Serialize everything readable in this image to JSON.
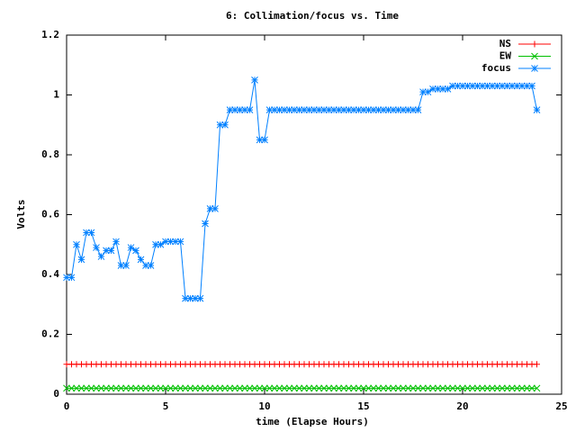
{
  "chart_data": {
    "type": "line",
    "title": "6: Collimation/focus vs. Time",
    "x_label": "time (Elapse Hours)",
    "y_label": "Volts",
    "xlim": [
      0,
      25
    ],
    "xticks": [
      0,
      5,
      10,
      15,
      20,
      25
    ],
    "ylim": [
      0,
      1.2
    ],
    "yticks": [
      0,
      0.2,
      0.4,
      0.6,
      0.8,
      1,
      1.2
    ],
    "legend": "top-right",
    "x": [
      0,
      0.25,
      0.5,
      0.75,
      1,
      1.25,
      1.5,
      1.75,
      2,
      2.25,
      2.5,
      2.75,
      3,
      3.25,
      3.5,
      3.75,
      4,
      4.25,
      4.5,
      4.75,
      5,
      5.25,
      5.5,
      5.75,
      6,
      6.25,
      6.5,
      6.75,
      7,
      7.25,
      7.5,
      7.75,
      8,
      8.25,
      8.5,
      8.75,
      9,
      9.25,
      9.5,
      9.75,
      10,
      10.25,
      10.5,
      10.75,
      11,
      11.25,
      11.5,
      11.75,
      12,
      12.25,
      12.5,
      12.75,
      13,
      13.25,
      13.5,
      13.75,
      14,
      14.25,
      14.5,
      14.75,
      15,
      15.25,
      15.5,
      15.75,
      16,
      16.25,
      16.5,
      16.75,
      17,
      17.25,
      17.5,
      17.75,
      18,
      18.25,
      18.5,
      18.75,
      19,
      19.25,
      19.5,
      19.75,
      20,
      20.25,
      20.5,
      20.75,
      21,
      21.25,
      21.5,
      21.75,
      22,
      22.25,
      22.5,
      22.75,
      23,
      23.25,
      23.5,
      23.75
    ],
    "series": [
      {
        "name": "NS",
        "color": "#ff0000",
        "marker": "plus",
        "values": [
          0.1,
          0.1,
          0.1,
          0.1,
          0.1,
          0.1,
          0.1,
          0.1,
          0.1,
          0.1,
          0.1,
          0.1,
          0.1,
          0.1,
          0.1,
          0.1,
          0.1,
          0.1,
          0.1,
          0.1,
          0.1,
          0.1,
          0.1,
          0.1,
          0.1,
          0.1,
          0.1,
          0.1,
          0.1,
          0.1,
          0.1,
          0.1,
          0.1,
          0.1,
          0.1,
          0.1,
          0.1,
          0.1,
          0.1,
          0.1,
          0.1,
          0.1,
          0.1,
          0.1,
          0.1,
          0.1,
          0.1,
          0.1,
          0.1,
          0.1,
          0.1,
          0.1,
          0.1,
          0.1,
          0.1,
          0.1,
          0.1,
          0.1,
          0.1,
          0.1,
          0.1,
          0.1,
          0.1,
          0.1,
          0.1,
          0.1,
          0.1,
          0.1,
          0.1,
          0.1,
          0.1,
          0.1,
          0.1,
          0.1,
          0.1,
          0.1,
          0.1,
          0.1,
          0.1,
          0.1,
          0.1,
          0.1,
          0.1,
          0.1,
          0.1,
          0.1,
          0.1,
          0.1,
          0.1,
          0.1,
          0.1,
          0.1,
          0.1,
          0.1,
          0.1,
          0.1
        ]
      },
      {
        "name": "EW",
        "color": "#00c000",
        "marker": "cross",
        "values": [
          0.02,
          0.02,
          0.02,
          0.02,
          0.02,
          0.02,
          0.02,
          0.02,
          0.02,
          0.02,
          0.02,
          0.02,
          0.02,
          0.02,
          0.02,
          0.02,
          0.02,
          0.02,
          0.02,
          0.02,
          0.02,
          0.02,
          0.02,
          0.02,
          0.02,
          0.02,
          0.02,
          0.02,
          0.02,
          0.02,
          0.02,
          0.02,
          0.02,
          0.02,
          0.02,
          0.02,
          0.02,
          0.02,
          0.02,
          0.02,
          0.02,
          0.02,
          0.02,
          0.02,
          0.02,
          0.02,
          0.02,
          0.02,
          0.02,
          0.02,
          0.02,
          0.02,
          0.02,
          0.02,
          0.02,
          0.02,
          0.02,
          0.02,
          0.02,
          0.02,
          0.02,
          0.02,
          0.02,
          0.02,
          0.02,
          0.02,
          0.02,
          0.02,
          0.02,
          0.02,
          0.02,
          0.02,
          0.02,
          0.02,
          0.02,
          0.02,
          0.02,
          0.02,
          0.02,
          0.02,
          0.02,
          0.02,
          0.02,
          0.02,
          0.02,
          0.02,
          0.02,
          0.02,
          0.02,
          0.02,
          0.02,
          0.02,
          0.02,
          0.02,
          0.02,
          0.02
        ]
      },
      {
        "name": "focus",
        "color": "#0080ff",
        "marker": "star",
        "values": [
          0.39,
          0.39,
          0.5,
          0.45,
          0.54,
          0.54,
          0.49,
          0.46,
          0.48,
          0.48,
          0.51,
          0.43,
          0.43,
          0.49,
          0.48,
          0.45,
          0.43,
          0.43,
          0.5,
          0.5,
          0.51,
          0.51,
          0.51,
          0.51,
          0.32,
          0.32,
          0.32,
          0.32,
          0.57,
          0.62,
          0.62,
          0.9,
          0.9,
          0.95,
          0.95,
          0.95,
          0.95,
          0.95,
          1.05,
          0.85,
          0.85,
          0.95,
          0.95,
          0.95,
          0.95,
          0.95,
          0.95,
          0.95,
          0.95,
          0.95,
          0.95,
          0.95,
          0.95,
          0.95,
          0.95,
          0.95,
          0.95,
          0.95,
          0.95,
          0.95,
          0.95,
          0.95,
          0.95,
          0.95,
          0.95,
          0.95,
          0.95,
          0.95,
          0.95,
          0.95,
          0.95,
          0.95,
          1.01,
          1.01,
          1.02,
          1.02,
          1.02,
          1.02,
          1.03,
          1.03,
          1.03,
          1.03,
          1.03,
          1.03,
          1.03,
          1.03,
          1.03,
          1.03,
          1.03,
          1.03,
          1.03,
          1.03,
          1.03,
          1.03,
          1.03,
          0.95
        ]
      }
    ]
  }
}
